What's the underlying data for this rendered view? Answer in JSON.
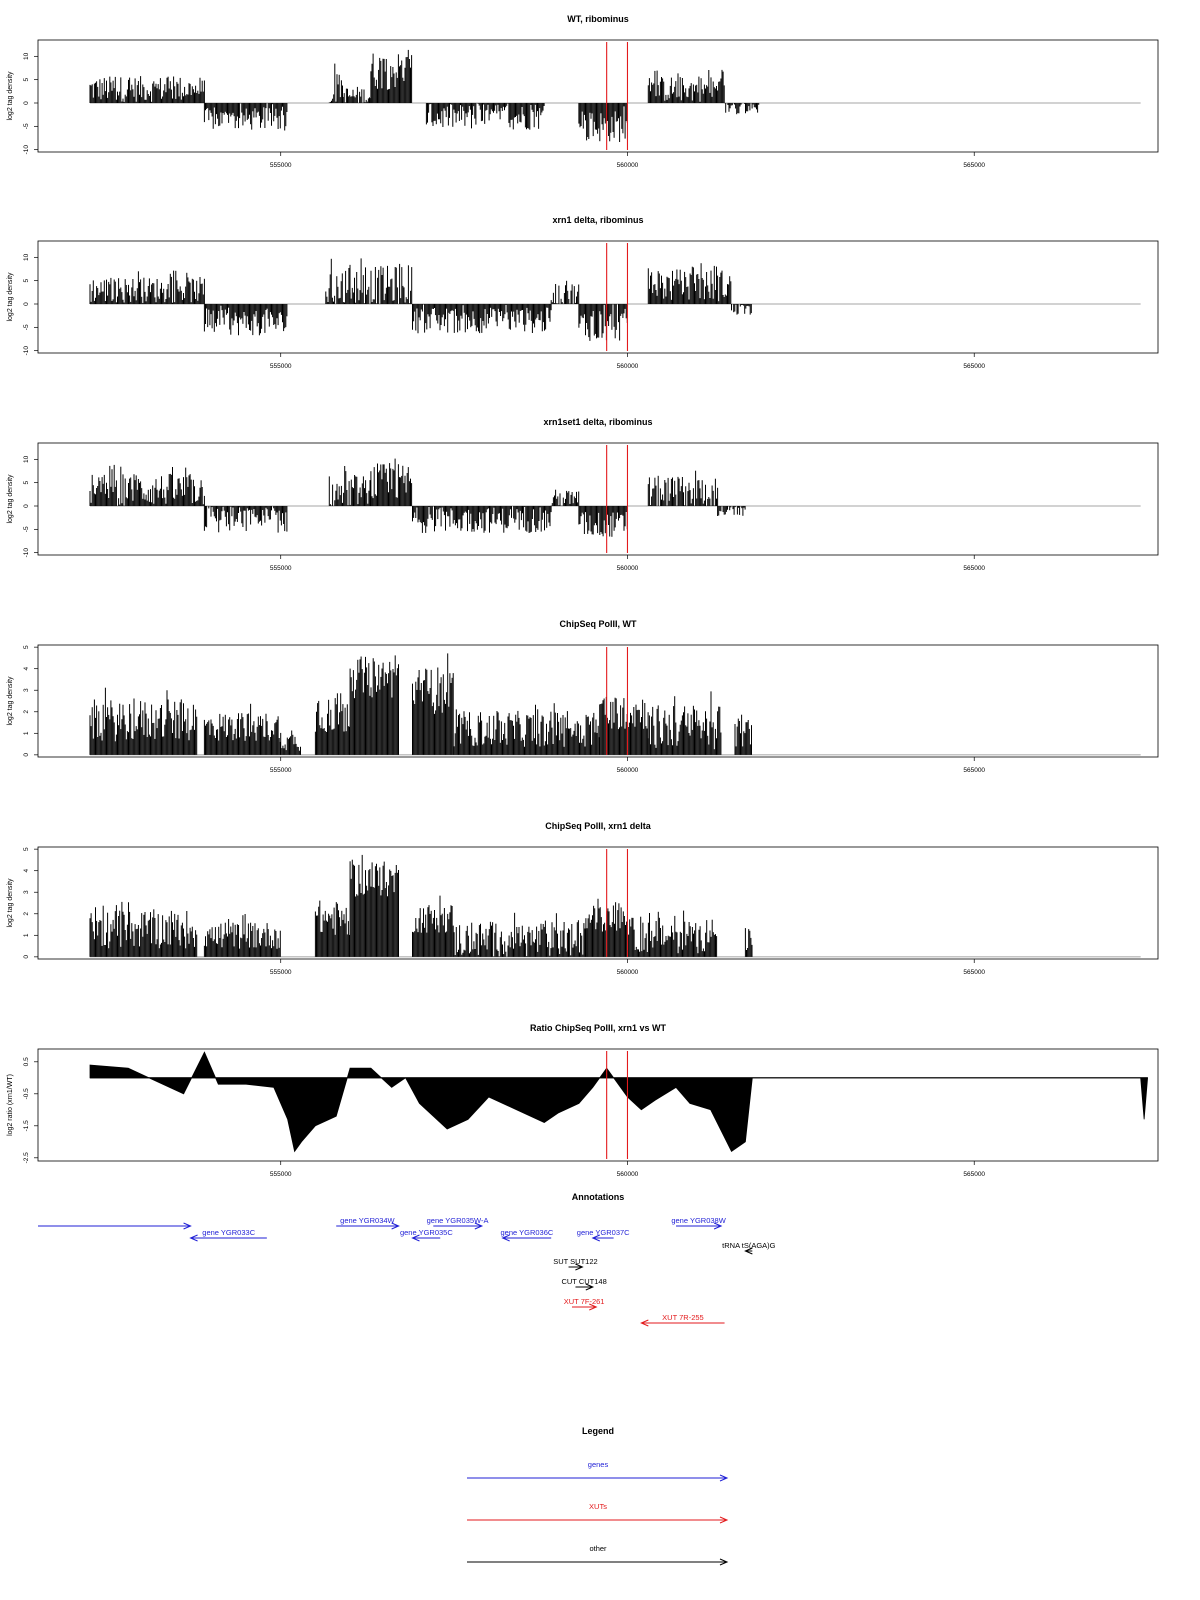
{
  "colors": {
    "data": "#000000",
    "zero_line": "#000000",
    "marker": "#e31a1c",
    "gene": "#1f1fd6",
    "xut": "#e31a1c",
    "other": "#000000"
  },
  "chart_data": [
    {
      "type": "bar",
      "title": "WT, ribominus",
      "ylabel": "log2 tag density",
      "ylim": [
        -10.5,
        13.5
      ],
      "yticks": [
        -10,
        -5,
        0,
        5,
        10
      ],
      "xticks": [
        555000,
        560000,
        565000
      ],
      "xlim": [
        551500,
        567650
      ],
      "grid": false,
      "markers": [
        559700,
        560000
      ],
      "segments": [
        {
          "from": 552250,
          "to": 553900,
          "mean": 3,
          "amp": 4
        },
        {
          "from": 553900,
          "to": 555100,
          "mean": -3.5,
          "amp": 3.5
        },
        {
          "from": 555700,
          "to": 555900,
          "mean": 2.5,
          "amp": 6
        },
        {
          "from": 555900,
          "to": 556300,
          "mean": 1.5,
          "amp": 3
        },
        {
          "from": 556300,
          "to": 556900,
          "mean": 7,
          "amp": 6
        },
        {
          "from": 557100,
          "to": 558800,
          "mean": -3,
          "amp": 4
        },
        {
          "from": 559300,
          "to": 560000,
          "mean": -5,
          "amp": 5
        },
        {
          "from": 560300,
          "to": 561400,
          "mean": 3,
          "amp": 4
        },
        {
          "from": 561400,
          "to": 561900,
          "mean": -1,
          "amp": 2
        }
      ]
    },
    {
      "type": "bar",
      "title": "xrn1 delta, ribominus",
      "ylabel": "log2 tag density",
      "ylim": [
        -10.5,
        13.5
      ],
      "yticks": [
        -10,
        -5,
        0,
        5,
        10
      ],
      "xticks": [
        555000,
        560000,
        565000
      ],
      "xlim": [
        551500,
        567650
      ],
      "grid": false,
      "markers": [
        559700,
        560000
      ],
      "segments": [
        {
          "from": 552250,
          "to": 553900,
          "mean": 3,
          "amp": 4
        },
        {
          "from": 553900,
          "to": 555100,
          "mean": -4,
          "amp": 4
        },
        {
          "from": 555650,
          "to": 556000,
          "mean": 3,
          "amp": 8
        },
        {
          "from": 556000,
          "to": 556900,
          "mean": 4,
          "amp": 6
        },
        {
          "from": 556900,
          "to": 558900,
          "mean": -3.5,
          "amp": 4
        },
        {
          "from": 558900,
          "to": 559300,
          "mean": 2,
          "amp": 4
        },
        {
          "from": 559300,
          "to": 560000,
          "mean": -4.5,
          "amp": 5
        },
        {
          "from": 560300,
          "to": 561500,
          "mean": 4,
          "amp": 5
        },
        {
          "from": 561500,
          "to": 561800,
          "mean": -1,
          "amp": 2
        }
      ]
    },
    {
      "type": "bar",
      "title": "xrn1set1 delta, ribominus",
      "ylabel": "log2 tag density",
      "ylim": [
        -10.5,
        13.5
      ],
      "yticks": [
        -10,
        -5,
        0,
        5,
        10
      ],
      "xticks": [
        555000,
        560000,
        565000
      ],
      "xlim": [
        551500,
        567650
      ],
      "grid": false,
      "markers": [
        559700,
        560000
      ],
      "segments": [
        {
          "from": 552250,
          "to": 553900,
          "mean": 3.5,
          "amp": 5
        },
        {
          "from": 553900,
          "to": 555100,
          "mean": -3,
          "amp": 4
        },
        {
          "from": 555700,
          "to": 556300,
          "mean": 2.5,
          "amp": 6
        },
        {
          "from": 556300,
          "to": 556900,
          "mean": 5,
          "amp": 6
        },
        {
          "from": 556900,
          "to": 558900,
          "mean": -3,
          "amp": 4
        },
        {
          "from": 558900,
          "to": 559300,
          "mean": 1.5,
          "amp": 3
        },
        {
          "from": 559300,
          "to": 560000,
          "mean": -4,
          "amp": 4
        },
        {
          "from": 560300,
          "to": 561300,
          "mean": 3,
          "amp": 5
        },
        {
          "from": 561300,
          "to": 561700,
          "mean": -1,
          "amp": 2
        }
      ]
    },
    {
      "type": "bar",
      "title": "ChipSeq PolII, WT",
      "ylabel": "log2 tag density",
      "ylim": [
        -0.1,
        5.1
      ],
      "yticks": [
        0,
        1,
        2,
        3,
        4,
        5
      ],
      "xticks": [
        555000,
        560000,
        565000
      ],
      "xlim": [
        551500,
        567650
      ],
      "grid": false,
      "markers": [
        559700,
        560000
      ],
      "segments": [
        {
          "from": 552250,
          "to": 553800,
          "mean": 1.6,
          "amp": 1.4
        },
        {
          "from": 553900,
          "to": 555000,
          "mean": 1.3,
          "amp": 1.0
        },
        {
          "from": 555000,
          "to": 555300,
          "mean": 0.6,
          "amp": 0.6
        },
        {
          "from": 555500,
          "to": 556000,
          "mean": 2.0,
          "amp": 1.5
        },
        {
          "from": 556000,
          "to": 556700,
          "mean": 3.6,
          "amp": 1.4
        },
        {
          "from": 556900,
          "to": 557500,
          "mean": 3.0,
          "amp": 1.6
        },
        {
          "from": 557500,
          "to": 559600,
          "mean": 1.2,
          "amp": 1.2
        },
        {
          "from": 559600,
          "to": 560300,
          "mean": 2.0,
          "amp": 1.2
        },
        {
          "from": 560300,
          "to": 561350,
          "mean": 1.3,
          "amp": 1.5
        },
        {
          "from": 561550,
          "to": 561800,
          "mean": 1.0,
          "amp": 1.0
        }
      ]
    },
    {
      "type": "bar",
      "title": "ChipSeq PolII, xrn1 delta",
      "ylabel": "log2 tag density",
      "ylim": [
        -0.1,
        5.1
      ],
      "yticks": [
        0,
        1,
        2,
        3,
        4,
        5
      ],
      "xticks": [
        555000,
        560000,
        565000
      ],
      "xlim": [
        551500,
        567650
      ],
      "grid": false,
      "markers": [
        559700,
        560000
      ],
      "segments": [
        {
          "from": 552250,
          "to": 553800,
          "mean": 1.3,
          "amp": 1.3
        },
        {
          "from": 553900,
          "to": 555000,
          "mean": 1.0,
          "amp": 0.9
        },
        {
          "from": 555500,
          "to": 556000,
          "mean": 1.8,
          "amp": 1.2
        },
        {
          "from": 556000,
          "to": 556700,
          "mean": 3.6,
          "amp": 1.2
        },
        {
          "from": 556900,
          "to": 557500,
          "mean": 1.8,
          "amp": 1.0
        },
        {
          "from": 557500,
          "to": 559400,
          "mean": 0.8,
          "amp": 1.2
        },
        {
          "from": 559400,
          "to": 560000,
          "mean": 1.8,
          "amp": 0.9
        },
        {
          "from": 560000,
          "to": 561300,
          "mean": 1.0,
          "amp": 1.2
        },
        {
          "from": 561700,
          "to": 561800,
          "mean": 0.8,
          "amp": 0.8
        }
      ]
    },
    {
      "type": "area",
      "title": "Ratio ChipSeq PolII, xrn1 vs WT",
      "ylabel": "log2 ratio (xrn1/WT)",
      "ylim": [
        -2.6,
        0.9
      ],
      "yticks": [
        -2.5,
        -1.5,
        -0.5,
        0.5
      ],
      "ytick_labels": [
        "-2.5",
        "-1.5",
        "-0.5",
        "0.5"
      ],
      "xticks": [
        555000,
        560000,
        565000
      ],
      "xlim": [
        551500,
        567650
      ],
      "grid": false,
      "markers": [
        559700,
        560000
      ],
      "baseline": 0,
      "x": [
        552250,
        552800,
        553300,
        553600,
        553900,
        554100,
        554500,
        554900,
        555100,
        555200,
        555300,
        555500,
        555800,
        556000,
        556300,
        556600,
        556800,
        557000,
        557400,
        557700,
        558000,
        558400,
        558800,
        559000,
        559300,
        559500,
        559700,
        560000,
        560200,
        560400,
        560700,
        560900,
        561200,
        561500,
        561700,
        561800,
        567400,
        567450,
        567500
      ],
      "y": [
        0.4,
        0.3,
        -0.2,
        -0.5,
        0.8,
        -0.2,
        -0.2,
        -0.3,
        -1.3,
        -2.3,
        -2.0,
        -1.5,
        -1.2,
        0.3,
        0.3,
        -0.3,
        0.0,
        -0.8,
        -1.6,
        -1.3,
        -0.6,
        -1.0,
        -1.4,
        -1.1,
        -0.8,
        -0.3,
        0.3,
        -0.6,
        -1.0,
        -0.7,
        -0.3,
        -0.8,
        -1.0,
        -2.3,
        -2.0,
        0.0,
        0.0,
        -1.3,
        0.0
      ]
    }
  ],
  "annotations_panel": {
    "title": "Annotations",
    "items": [
      {
        "label": "",
        "from": 551500,
        "to": 553700,
        "dir": 1,
        "kind": "gene",
        "row": 0
      },
      {
        "label": "gene YGR033C",
        "from": 553700,
        "to": 554800,
        "dir": -1,
        "kind": "gene",
        "row": 1
      },
      {
        "label": "gene YGR034W",
        "from": 555800,
        "to": 556700,
        "dir": 1,
        "kind": "gene",
        "row": 0
      },
      {
        "label": "gene YGR035C",
        "from": 556900,
        "to": 557300,
        "dir": -1,
        "kind": "gene",
        "row": 1
      },
      {
        "label": "gene YGR035W-A",
        "from": 557200,
        "to": 557900,
        "dir": 1,
        "kind": "gene",
        "row": 0
      },
      {
        "label": "gene YGR036C",
        "from": 558200,
        "to": 558900,
        "dir": -1,
        "kind": "gene",
        "row": 1
      },
      {
        "label": "gene YGR037C",
        "from": 559500,
        "to": 559800,
        "dir": -1,
        "kind": "gene",
        "row": 1
      },
      {
        "label": "gene YGR038W",
        "from": 560700,
        "to": 561350,
        "dir": 1,
        "kind": "gene",
        "row": 0
      },
      {
        "label": "tRNA tS(AGA)G",
        "from": 561700,
        "to": 561800,
        "dir": -1,
        "kind": "other",
        "row": 2
      },
      {
        "label": "SUT SUT122",
        "from": 559150,
        "to": 559350,
        "dir": 1,
        "kind": "other",
        "row": 3
      },
      {
        "label": "CUT CUT148",
        "from": 559250,
        "to": 559500,
        "dir": 1,
        "kind": "other",
        "row": 4
      },
      {
        "label": "XUT 7F-261",
        "from": 559200,
        "to": 559550,
        "dir": 1,
        "kind": "xut",
        "row": 5
      },
      {
        "label": "XUT 7R-255",
        "from": 560200,
        "to": 561400,
        "dir": -1,
        "kind": "xut",
        "row": 6
      }
    ]
  },
  "legend": {
    "title": "Legend",
    "items": [
      {
        "label": "genes",
        "kind": "gene"
      },
      {
        "label": "XUTs",
        "kind": "xut"
      },
      {
        "label": "other",
        "kind": "other"
      }
    ]
  }
}
